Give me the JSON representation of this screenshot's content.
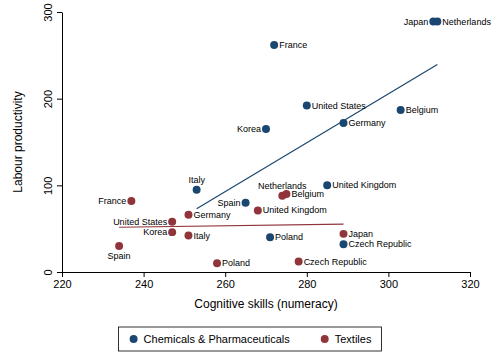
{
  "chart_data": {
    "type": "scatter",
    "x_label": "Cognitive skills (numeracy)",
    "y_label": "Labour productivity",
    "xlim": [
      220,
      320
    ],
    "xticks": [
      220,
      240,
      260,
      280,
      300,
      320
    ],
    "ylim": [
      0,
      300
    ],
    "yticks": [
      0,
      100,
      200,
      300
    ],
    "legend": "bottom",
    "series": [
      {
        "name": "Chemicals & Pharmaceuticals",
        "color": "#1a476f",
        "marker": "circle",
        "labels": [
          "France",
          "Japan",
          "Netherlands",
          "United States",
          "Belgium",
          "Germany",
          "Korea",
          "Italy",
          "Spain",
          "United Kingdom",
          "Poland",
          "Czech Republic"
        ],
        "x": [
          272,
          311,
          312,
          280,
          303,
          289,
          270,
          253,
          265,
          285,
          271,
          289
        ],
        "values": [
          262,
          289,
          289,
          192,
          187,
          172,
          165,
          95,
          80,
          100,
          40,
          32
        ]
      },
      {
        "name": "Textiles",
        "color": "#90353b",
        "marker": "circle",
        "labels": [
          "France",
          "Spain",
          "United States",
          "Germany",
          "Korea",
          "Italy",
          "Poland",
          "Netherlands",
          "Belgium",
          "United Kingdom",
          "Japan",
          "Czech Republic"
        ],
        "x": [
          237,
          234,
          247,
          251,
          247,
          251,
          258,
          274,
          275,
          268,
          289,
          278
        ],
        "values": [
          82,
          30,
          58,
          66,
          46,
          42,
          10,
          88,
          90,
          71,
          44,
          12
        ]
      }
    ]
  }
}
